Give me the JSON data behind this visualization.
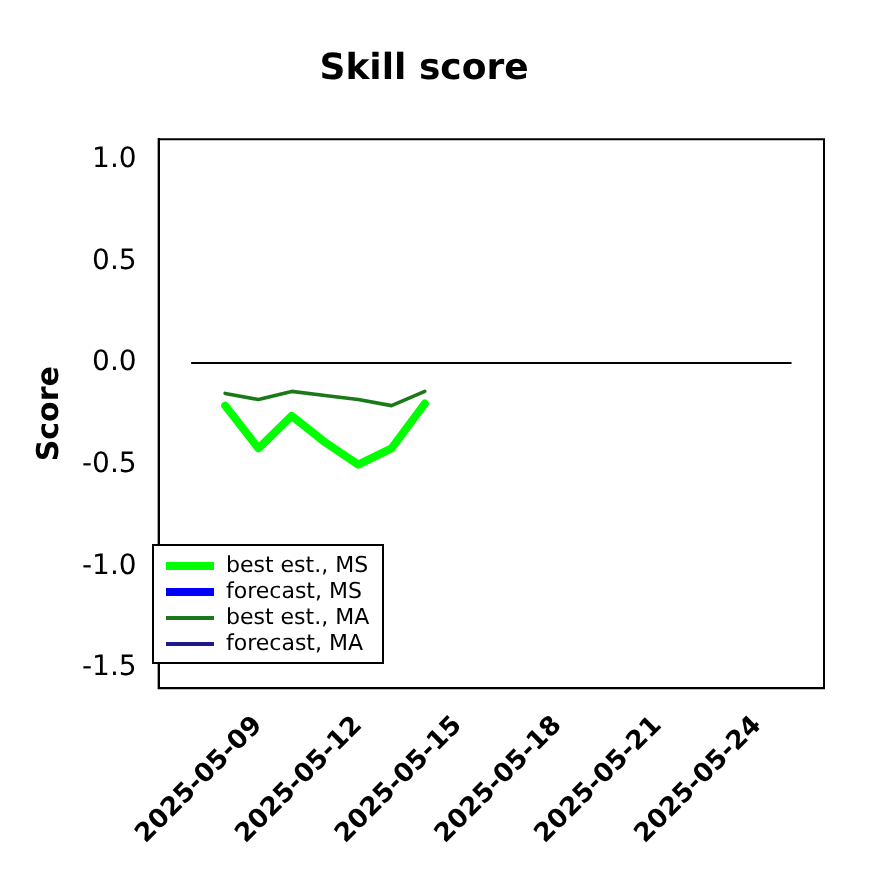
{
  "chart_data": {
    "type": "line",
    "title": "Skill score",
    "ylabel": "Score",
    "xlim": [
      "2025-05-06",
      "2025-05-26"
    ],
    "xticks": [
      "2025-05-09",
      "2025-05-12",
      "2025-05-15",
      "2025-05-18",
      "2025-05-21",
      "2025-05-24"
    ],
    "ylim": [
      -1.6,
      1.1
    ],
    "yticks": [
      {
        "value": -1.5,
        "label": "-1.5"
      },
      {
        "value": -1,
        "label": "-1.0"
      },
      {
        "value": -0.5,
        "label": "-0.5"
      },
      {
        "value": 0,
        "label": "0.0"
      },
      {
        "value": 0.5,
        "label": "0.5"
      },
      {
        "value": 1,
        "label": "1.0"
      }
    ],
    "x": [
      "2025-05-08",
      "2025-05-09",
      "2025-05-10",
      "2025-05-11",
      "2025-05-12",
      "2025-05-13",
      "2025-05-14"
    ],
    "series": [
      {
        "name": "best est., MS",
        "color": "#00ff00",
        "values": [
          -0.21,
          -0.42,
          -0.26,
          -0.39,
          -0.5,
          -0.42,
          -0.2
        ]
      },
      {
        "name": "forecast, MS",
        "color": "#0000ff",
        "values": [
          null,
          null,
          null,
          null,
          null,
          null,
          null
        ]
      },
      {
        "name": "best est., MA",
        "color": "#1a7a1a",
        "values": [
          -0.15,
          -0.18,
          -0.14,
          -0.16,
          -0.18,
          -0.21,
          -0.14
        ]
      },
      {
        "name": "forecast, MA",
        "color": "#1a1a8c",
        "values": [
          null,
          null,
          null,
          null,
          null,
          null,
          null
        ]
      },
      {
        "color": "#000000",
        "x": [
          "2025-05-07",
          "2025-05-25"
        ],
        "values": [
          0,
          0
        ]
      }
    ],
    "legend": "bottom left",
    "grid": false,
    "marker": "none",
    "line_style": "solid"
  }
}
